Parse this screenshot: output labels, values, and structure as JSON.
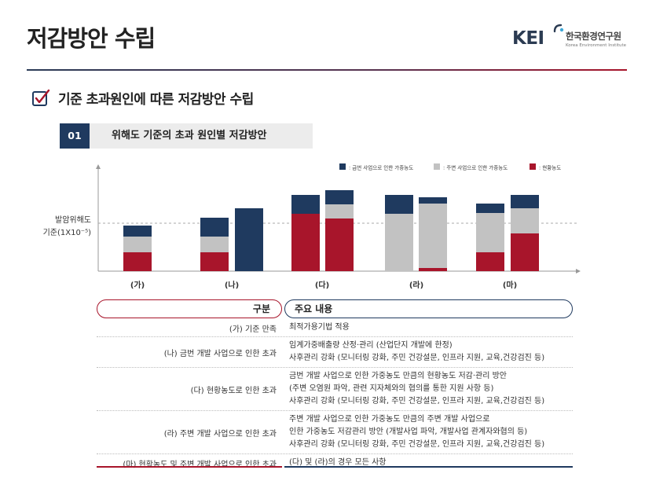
{
  "page": {
    "title": "저감방안 수립",
    "logo_mark": "KEI",
    "logo_korean": "한국환경연구원",
    "logo_english": "Korea Environment Institute"
  },
  "subheading": "기준 초과원인에 따른 저감방안 수립",
  "section": {
    "number": "01",
    "title": "위해도 기준의 초과 원인별 저감방안"
  },
  "colors": {
    "navy": "#1f3a5f",
    "gray": "#c2c2c2",
    "red": "#a8152b"
  },
  "chart_data": {
    "type": "bar",
    "categories": [
      "(가)",
      "(나)",
      "(다)",
      "(라)",
      "(마)"
    ],
    "threshold": {
      "label_line1": "발암위해도",
      "label_line2": "기준(1X10⁻⁵)",
      "value": 61
    },
    "legend": [
      {
        "name": ": 금번 사업으로 인한 가중농도",
        "color": "#1f3a5f"
      },
      {
        "name": ": 주변 사업으로 인한 가중농도",
        "color": "#c2c2c2"
      },
      {
        "name": ": 현황농도",
        "color": "#a8152b"
      }
    ],
    "bars": [
      {
        "category": "(가)",
        "red": 24,
        "gray": 20,
        "navy": 14
      },
      {
        "category": "(나)",
        "red": 24,
        "gray": 20,
        "navy": 24
      },
      {
        "category": "(나)",
        "red": 0,
        "gray": 0,
        "navy": 80
      },
      {
        "category": "(다)",
        "red": 73,
        "gray": 0,
        "navy": 24
      },
      {
        "category": "(다)",
        "red": 67,
        "gray": 18,
        "navy": 18
      },
      {
        "category": "(라)",
        "red": 0,
        "gray": 73,
        "navy": 24
      },
      {
        "category": "(라)",
        "red": 4,
        "gray": 82,
        "navy": 8
      },
      {
        "category": "(마)",
        "red": 24,
        "gray": 50,
        "navy": 12
      },
      {
        "category": "(마)",
        "red": 48,
        "gray": 32,
        "navy": 17
      }
    ],
    "ylim": [
      0,
      130
    ],
    "grid": false,
    "legend_position": "top-right"
  },
  "table": {
    "header_left": "구분",
    "header_right": "주요 내용",
    "rows": [
      {
        "category": "(가) 기준 만족",
        "content": [
          "최적가용기법 적용"
        ]
      },
      {
        "category": "(나) 금번 개발 사업으로 인한 초과",
        "content": [
          "임계가중배출량 산정·관리 (산업단지 개발에 한정)",
          "사후관리 강화 (모니터링 강화, 주민 건강설문, 인프라 지원, 교육,건강검진 등)"
        ]
      },
      {
        "category": "(다) 현황농도로 인한 초과",
        "content": [
          "금번 개발 사업으로 인한 가중농도 만큼의 현황농도 저감·관리 방안",
          " (주변 오염원 파악, 관련 지자체와의 협의를 통한 지원 사항 등)",
          "사후관리 강화 (모니터링 강화, 주민 건강설문, 인프라 지원, 교육,건강검진 등)"
        ]
      },
      {
        "category": "(라) 주변 개발 사업으로 인한 초과",
        "content": [
          "주변 개발 사업으로 인한 가중농도 만큼의 주변 개발 사업으로",
          "인한 가중농도 저감관리 방안 (개발사업 파악, 개발사업 관계자와협의 등)",
          "사후관리 강화 (모니터링 강화, 주민 건강설문, 인프라 지원, 교육,건강검진 등)"
        ]
      },
      {
        "category": "(마) 현황농도 및 주변 개발 사업으로 인한 초과",
        "content": [
          "(다) 및 (라)의 경우 모든 사항"
        ]
      }
    ]
  }
}
